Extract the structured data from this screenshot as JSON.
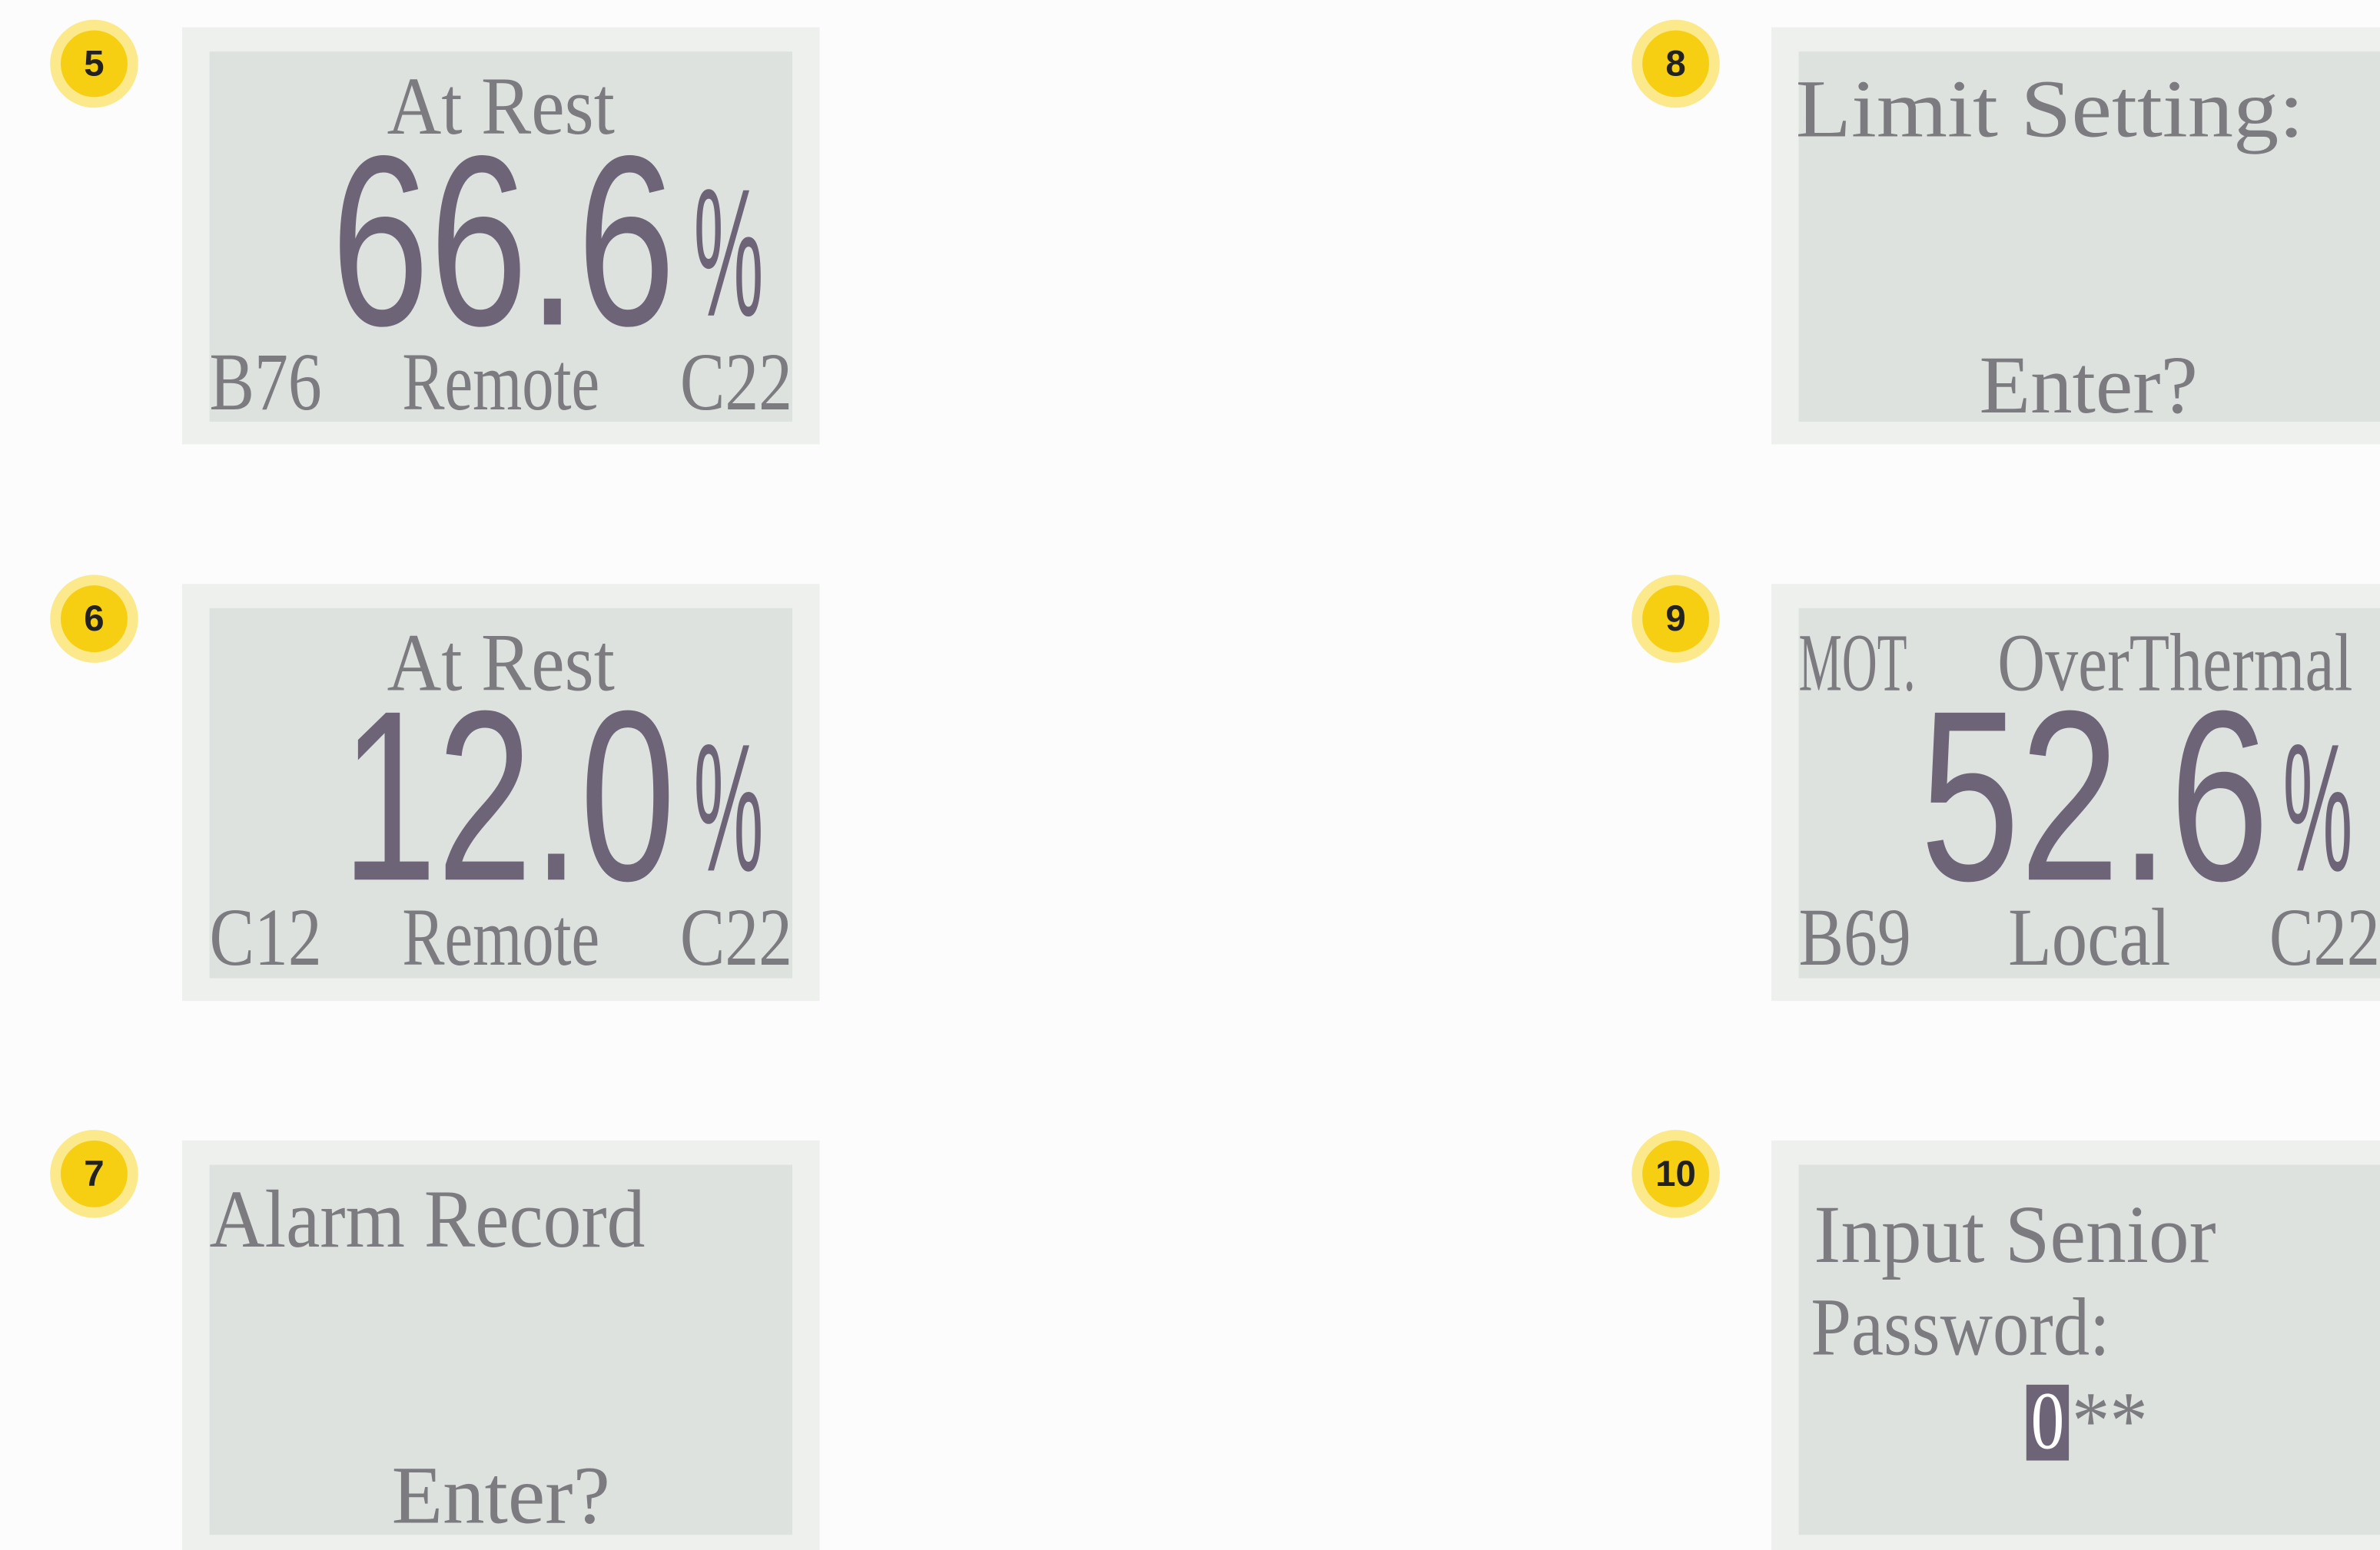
{
  "screens": [
    {
      "badge": "5",
      "texts": [
        "At Rest",
        "66.6",
        "%",
        "B76",
        "Remote",
        "C22"
      ]
    },
    {
      "badge": "6",
      "texts": [
        "At Rest",
        "12.0",
        "%",
        "C12",
        "Remote",
        "C22"
      ]
    },
    {
      "badge": "7",
      "texts": [
        "Alarm Record",
        "Enter?"
      ]
    },
    {
      "badge": "8",
      "texts": [
        "Limit Setting:",
        "Enter?"
      ]
    },
    {
      "badge": "9",
      "texts": [
        "MOT.",
        "OverThermal",
        "52.6",
        "%",
        "B69",
        "Local",
        "C22"
      ]
    },
    {
      "badge": "10",
      "texts": [
        "Input Senior",
        "Password:",
        "0",
        "**"
      ]
    }
  ]
}
